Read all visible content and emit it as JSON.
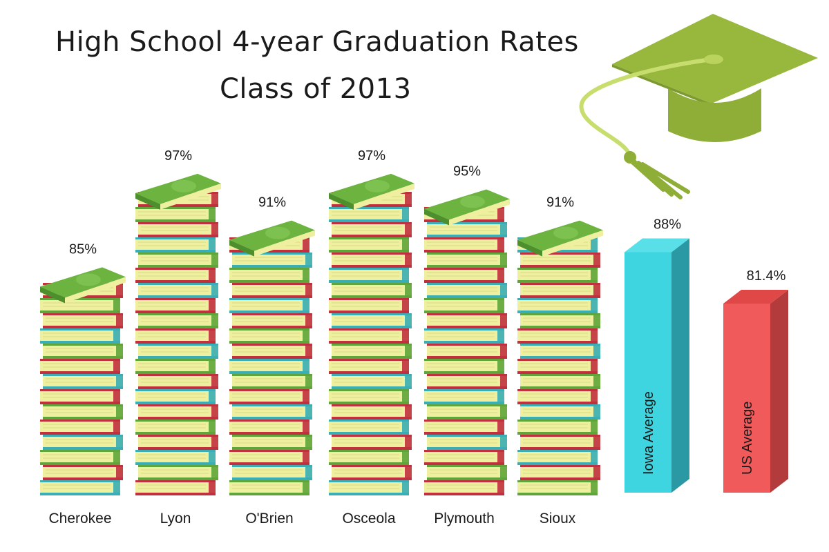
{
  "title": "High School 4-year Graduation Rates",
  "subtitle": "Class of 2013",
  "colors": {
    "book_red": "#c0313d",
    "book_teal": "#3aaeb4",
    "book_green": "#5fa53a",
    "book_pages": "#eef0a0",
    "top_book": "#6cb33f",
    "iowa_bar": "#3fd5e0",
    "us_bar": "#f05a5a",
    "cap": "#8fb13a",
    "tassel": "#c7de6e"
  },
  "icons": [
    "graduation-cap-icon",
    "book-stack-icon"
  ],
  "chart_data": {
    "type": "bar",
    "title": "High School 4-year Graduation Rates",
    "subtitle": "Class of 2013",
    "categories": [
      "Cherokee",
      "Lyon",
      "O'Brien",
      "Osceola",
      "Plymouth",
      "Sioux",
      "Iowa Average",
      "US Average"
    ],
    "values": [
      85,
      97,
      91,
      97,
      95,
      91,
      88,
      81.4
    ],
    "value_labels": [
      "85%",
      "97%",
      "91%",
      "97%",
      "95%",
      "91%",
      "88%",
      "81.4%"
    ],
    "bar_styles": [
      "book-stack",
      "book-stack",
      "book-stack",
      "book-stack",
      "book-stack",
      "book-stack",
      "solid-3d-teal",
      "solid-3d-red"
    ],
    "ylim": [
      55,
      100
    ],
    "xlabel": "",
    "ylabel": "",
    "grid": false,
    "legend": "none"
  }
}
